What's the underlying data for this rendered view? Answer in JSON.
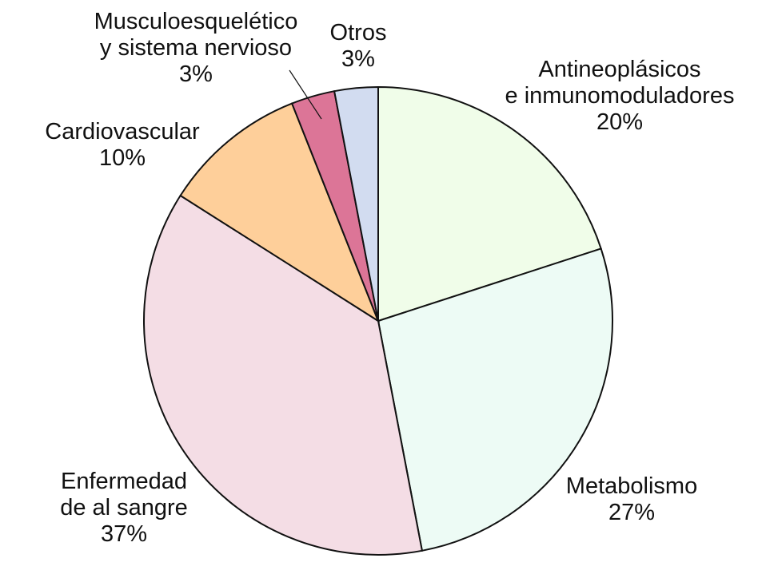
{
  "chart_data": {
    "type": "pie",
    "title": "",
    "slices": [
      {
        "label": [
          "Antineoplásicos",
          "e inmunomoduladores"
        ],
        "percent_label": "20%",
        "value": 20,
        "color": "#f0fde9"
      },
      {
        "label": [
          "Metabolismo"
        ],
        "percent_label": "27%",
        "value": 27,
        "color": "#edfbf5"
      },
      {
        "label": [
          "Enfermedad",
          "de al sangre"
        ],
        "percent_label": "37%",
        "value": 37,
        "color": "#f4dde5"
      },
      {
        "label": [
          "Cardiovascular"
        ],
        "percent_label": "10%",
        "value": 10,
        "color": "#fecf9a"
      },
      {
        "label": [
          "Musculoesquelético",
          "y sistema nervioso"
        ],
        "percent_label": "3%",
        "value": 3,
        "color": "#dc7597"
      },
      {
        "label": [
          "Otros"
        ],
        "percent_label": "3%",
        "value": 3,
        "color": "#d2dcf0"
      }
    ]
  }
}
